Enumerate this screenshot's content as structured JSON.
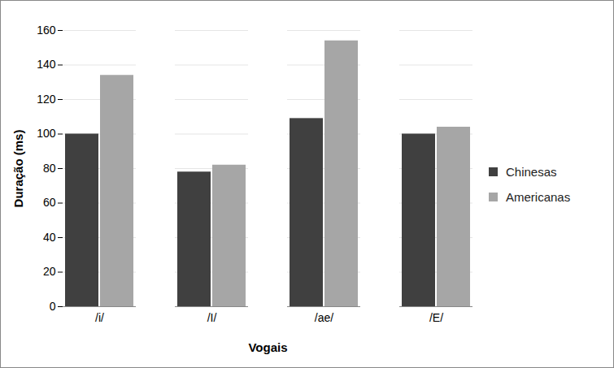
{
  "chart_data": {
    "type": "bar",
    "categories": [
      "/i/",
      "/I/",
      "/ae/",
      "/E/"
    ],
    "series": [
      {
        "name": "Chinesas",
        "color": "#404040",
        "values": [
          100,
          78,
          109,
          100
        ]
      },
      {
        "name": "Americanas",
        "color": "#a6a6a6",
        "values": [
          134,
          82,
          154,
          104
        ]
      }
    ],
    "x_label": "Vogais",
    "y_label": "Duração (ms)",
    "ylim": [
      0,
      160
    ],
    "yticks": [
      0,
      20,
      40,
      60,
      80,
      100,
      120,
      140,
      160
    ],
    "grid": true,
    "legend": "right"
  }
}
